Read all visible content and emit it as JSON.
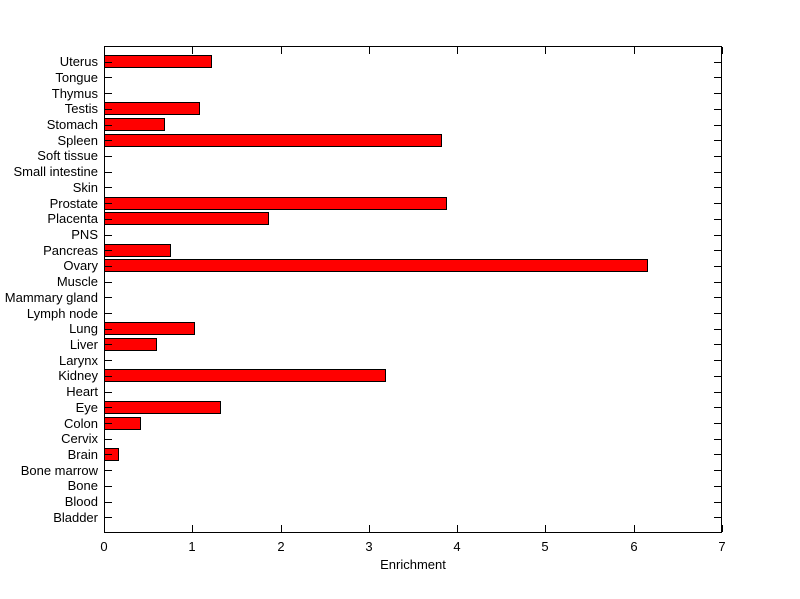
{
  "figure": {
    "background": "#ffffff",
    "axis_color": "#000000",
    "text_color": "#000000"
  },
  "chart_data": {
    "type": "bar",
    "orientation": "horizontal",
    "title": "",
    "xlabel": "Enrichment",
    "ylabel": "",
    "xlim": [
      0,
      7
    ],
    "xticks": [
      0,
      1,
      2,
      3,
      4,
      5,
      6,
      7
    ],
    "grid": false,
    "legend": null,
    "bar_color": "#ff0000",
    "bar_edge_color": "#000000",
    "categories": [
      "Uterus",
      "Tongue",
      "Thymus",
      "Testis",
      "Stomach",
      "Spleen",
      "Soft tissue",
      "Small intestine",
      "Skin",
      "Prostate",
      "Placenta",
      "PNS",
      "Pancreas",
      "Ovary",
      "Muscle",
      "Mammary gland",
      "Lymph node",
      "Lung",
      "Liver",
      "Larynx",
      "Kidney",
      "Heart",
      "Eye",
      "Colon",
      "Cervix",
      "Brain",
      "Bone marrow",
      "Bone",
      "Blood",
      "Bladder"
    ],
    "values": [
      1.22,
      0,
      0,
      1.09,
      0.69,
      3.83,
      0,
      0,
      0,
      3.88,
      1.87,
      0,
      0.76,
      6.16,
      0,
      0,
      0,
      1.03,
      0.6,
      0,
      3.19,
      0,
      1.32,
      0.42,
      0,
      0.17,
      0,
      0,
      0,
      0
    ]
  }
}
